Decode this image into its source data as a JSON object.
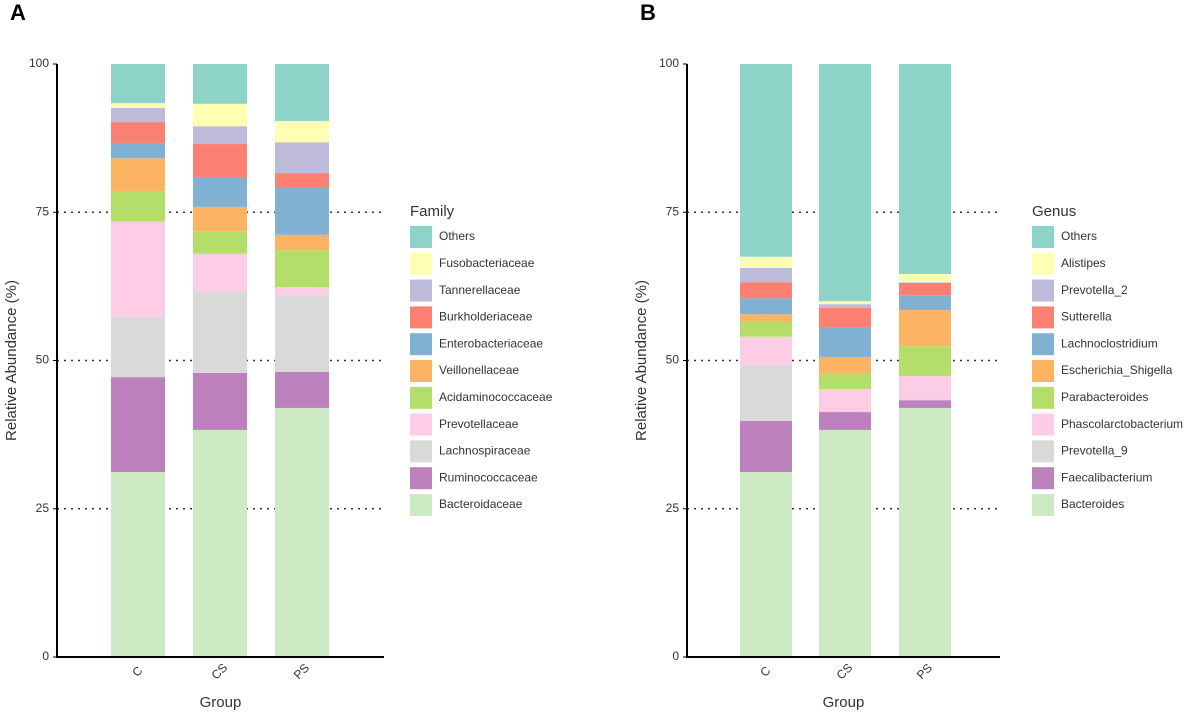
{
  "chart_data": [
    {
      "type": "stacked_bar",
      "panel_label": "A",
      "x_label": "Group",
      "y_label": "Relative Abundance (%)",
      "legend_title": "Family",
      "categories": [
        "C",
        "CS",
        "PS"
      ],
      "ylim": [
        0,
        100
      ],
      "yticks": [
        0,
        25,
        50,
        75,
        100
      ],
      "grid": true,
      "legend": "right",
      "series": [
        {
          "name": "Others",
          "color": "#8dd3c7",
          "values": [
            6.6,
            6.7,
            9.6
          ]
        },
        {
          "name": "Fusobacteriaceae",
          "color": "#ffffb3",
          "values": [
            0.8,
            3.8,
            3.6
          ]
        },
        {
          "name": "Tannerellaceae",
          "color": "#bebada",
          "values": [
            2.4,
            3.0,
            5.2
          ]
        },
        {
          "name": "Burkholderiaceae",
          "color": "#fb8072",
          "values": [
            3.5,
            5.7,
            2.5
          ]
        },
        {
          "name": "Enterobacteriaceae",
          "color": "#80b1d3",
          "values": [
            2.6,
            4.9,
            7.9
          ]
        },
        {
          "name": "Veillonellaceae",
          "color": "#fdb462",
          "values": [
            5.5,
            4.1,
            2.6
          ]
        },
        {
          "name": "Acidaminococcaceae",
          "color": "#b3de69",
          "values": [
            5.2,
            3.8,
            6.2
          ]
        },
        {
          "name": "Prevotellaceae",
          "color": "#fccde5",
          "values": [
            16.1,
            6.4,
            1.4
          ]
        },
        {
          "name": "Lachnospiraceae",
          "color": "#d9d9d9",
          "values": [
            10.1,
            13.7,
            12.9
          ]
        },
        {
          "name": "Ruminococcaceae",
          "color": "#bc80bd",
          "values": [
            16.0,
            9.6,
            6.1
          ]
        },
        {
          "name": "Bacteroidaceae",
          "color": "#ccebc5",
          "values": [
            31.2,
            38.3,
            42.0
          ]
        }
      ]
    },
    {
      "type": "stacked_bar",
      "panel_label": "B",
      "x_label": "Group",
      "y_label": "Relative Abundance (%)",
      "legend_title": "Genus",
      "categories": [
        "C",
        "CS",
        "PS"
      ],
      "ylim": [
        0,
        100
      ],
      "yticks": [
        0,
        25,
        50,
        75,
        100
      ],
      "grid": true,
      "legend": "right",
      "series": [
        {
          "name": "Others",
          "color": "#8dd3c7",
          "values": [
            32.5,
            40.0,
            35.4
          ]
        },
        {
          "name": "Alistipes",
          "color": "#ffffb3",
          "values": [
            1.9,
            0.5,
            1.4
          ]
        },
        {
          "name": "Prevotella_2",
          "color": "#bebada",
          "values": [
            2.4,
            0.6,
            0.1
          ]
        },
        {
          "name": "Sutterella",
          "color": "#fb8072",
          "values": [
            2.7,
            3.4,
            2.1
          ]
        },
        {
          "name": "Lachnoclostridium",
          "color": "#80b1d3",
          "values": [
            2.7,
            4.9,
            2.5
          ]
        },
        {
          "name": "Escherichia_Shigella",
          "color": "#fdb462",
          "values": [
            1.3,
            2.7,
            6.1
          ]
        },
        {
          "name": "Parabacteroides",
          "color": "#b3de69",
          "values": [
            2.5,
            2.7,
            5.0
          ]
        },
        {
          "name": "Phascolarctobacterium",
          "color": "#fccde5",
          "values": [
            4.8,
            3.7,
            3.9
          ]
        },
        {
          "name": "Prevotella_9",
          "color": "#d9d9d9",
          "values": [
            9.4,
            0.2,
            0.2
          ]
        },
        {
          "name": "Faecalibacterium",
          "color": "#bc80bd",
          "values": [
            8.6,
            3.0,
            1.3
          ]
        },
        {
          "name": "Bacteroides",
          "color": "#ccebc5",
          "values": [
            31.2,
            38.3,
            42.0
          ]
        }
      ]
    }
  ]
}
